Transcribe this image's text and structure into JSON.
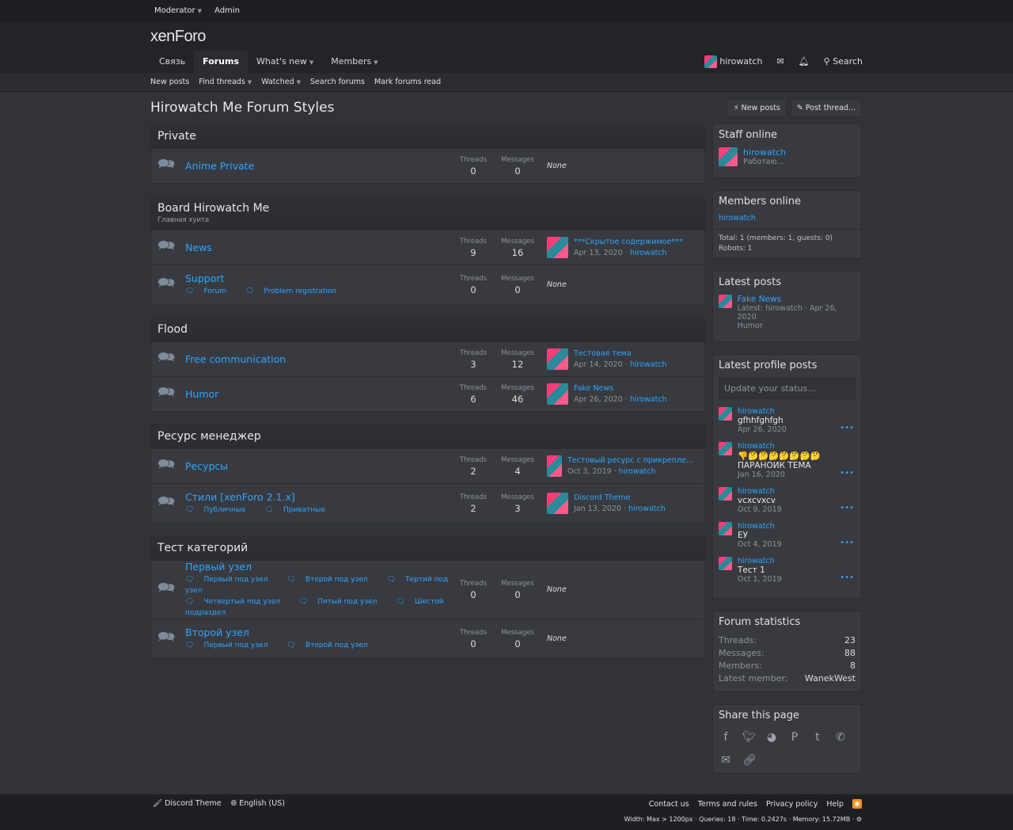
{
  "topbar": {
    "moderator": "Moderator",
    "admin": "Admin"
  },
  "logo": "xenForo",
  "nav": {
    "items": [
      "Связь",
      "Forums",
      "What's new",
      "Members"
    ],
    "user": "hirowatch",
    "search": "Search"
  },
  "subnav": [
    "New posts",
    "Find threads",
    "Watched",
    "Search forums",
    "Mark forums read"
  ],
  "page": {
    "title": "Hirowatch Me Forum Styles",
    "new_posts": "New posts",
    "post_thread": "Post thread..."
  },
  "labels": {
    "threads": "Threads",
    "messages": "Messages",
    "none": "None"
  },
  "categories": [
    {
      "title": "Private",
      "nodes": [
        {
          "title": "Anime Private",
          "threads": "0",
          "messages": "0"
        }
      ]
    },
    {
      "title": "Board Hirowatch Me",
      "desc": "Главная хуита",
      "nodes": [
        {
          "title": "News",
          "threads": "9",
          "messages": "16",
          "last": {
            "title": "***Скрытое содержимое***",
            "date": "Apr 13, 2020",
            "user": "hirowatch"
          }
        },
        {
          "title": "Support",
          "subs": [
            "Forum",
            "Problem registration"
          ],
          "threads": "0",
          "messages": "0"
        }
      ]
    },
    {
      "title": "Flood",
      "nodes": [
        {
          "title": "Free communication",
          "threads": "3",
          "messages": "12",
          "last": {
            "title": "Тестовая тема",
            "date": "Apr 14, 2020",
            "user": "hirowatch"
          }
        },
        {
          "title": "Humor",
          "threads": "6",
          "messages": "46",
          "last": {
            "title": "Fake News",
            "date": "Apr 26, 2020",
            "user": "hirowatch"
          }
        }
      ]
    },
    {
      "title": "Ресурс менеджер",
      "nodes": [
        {
          "title": "Ресурсы",
          "threads": "2",
          "messages": "4",
          "last": {
            "title": "Тестовый ресурс с прикрепленны...",
            "date": "Oct 3, 2019",
            "user": "hirowatch"
          }
        },
        {
          "title": "Стили [xenForo 2.1.x]",
          "subs": [
            "Публичные",
            "Приватные"
          ],
          "threads": "2",
          "messages": "3",
          "last": {
            "title": "Discord Theme",
            "date": "Jan 13, 2020",
            "user": "hirowatch"
          }
        }
      ]
    },
    {
      "title": "Тест категорий",
      "nodes": [
        {
          "title": "Первый узел",
          "subs": [
            "Первый под узел",
            "Второй под узел",
            "Тертий под узел",
            "Четвертый под узел",
            "Пятый под узел",
            "Шестой подраздел"
          ],
          "threads": "0",
          "messages": "0"
        },
        {
          "title": "Второй узел",
          "subs": [
            "Первый под узел",
            "Второй под узел"
          ],
          "threads": "0",
          "messages": "0"
        }
      ]
    }
  ],
  "sidebar": {
    "staff": {
      "title": "Staff online",
      "user": "hirowatch",
      "status": "Работаю..."
    },
    "members": {
      "title": "Members online",
      "user": "hirowatch",
      "total": "Total: 1 (members: 1, guests: 0)",
      "robots": "Robots: 1"
    },
    "latest": {
      "title": "Latest posts",
      "post": "Fake News",
      "meta": "Latest: hirowatch · Apr 26, 2020",
      "forum": "Humor"
    },
    "profile": {
      "title": "Latest profile posts",
      "placeholder": "Update your status...",
      "posts": [
        {
          "user": "hirowatch",
          "text": "gfhhfghfgh",
          "date": "Apr 26, 2020"
        },
        {
          "user": "hirowatch",
          "text": "👎🤔🤔🤔🤔🤔🤔🤔\nПАРАНОИК ТЕМА",
          "date": "Jan 16, 2020"
        },
        {
          "user": "hirowatch",
          "text": "vcxcvxcv",
          "date": "Oct 9, 2019"
        },
        {
          "user": "hirowatch",
          "text": "ЕУ",
          "date": "Oct 4, 2019"
        },
        {
          "user": "hirowatch",
          "text": "Тест 1",
          "date": "Oct 1, 2019"
        }
      ]
    },
    "stats": {
      "title": "Forum statistics",
      "rows": [
        [
          "Threads:",
          "23"
        ],
        [
          "Messages:",
          "88"
        ],
        [
          "Members:",
          "8"
        ],
        [
          "Latest member:",
          "WanekWest"
        ]
      ]
    },
    "share": {
      "title": "Share this page",
      "icons": [
        "facebook-icon",
        "twitter-icon",
        "reddit-icon",
        "pinterest-icon",
        "tumblr-icon",
        "whatsapp-icon",
        "email-icon",
        "link-icon"
      ]
    }
  },
  "footer": {
    "style": "Discord Theme",
    "language": "English (US)",
    "links": [
      "Contact us",
      "Terms and rules",
      "Privacy policy",
      "Help"
    ],
    "debug": "Width: Max > 1200px · Queries: 18 · Time: 0.2427s · Memory: 15.72MB · ⚙"
  },
  "colors": {
    "link": "#2ea6ff",
    "background": "#313338",
    "block": "#383a40",
    "rss": "#f7931e"
  }
}
